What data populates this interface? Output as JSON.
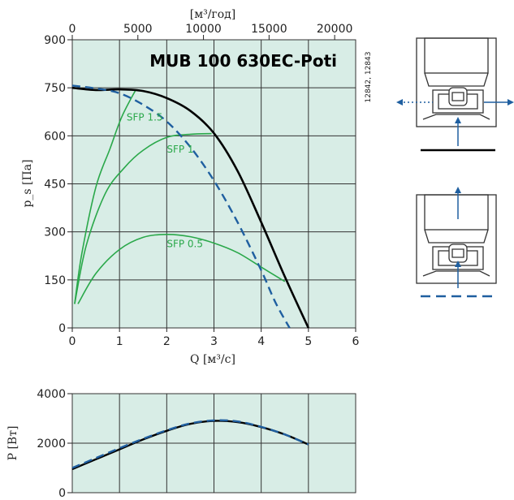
{
  "chart_data": [
    {
      "type": "line",
      "title": "MUB 100 630EC-Poti",
      "side_code": "12842, 12843",
      "xlabel": "Q [м³/с]",
      "x2label": "[м³/год]",
      "ylabel": "p_s [Па]",
      "xlim": [
        0,
        6
      ],
      "ylim": [
        0,
        900
      ],
      "x2lim": [
        0,
        21600
      ],
      "xticks": [
        "0",
        "1",
        "2",
        "3",
        "4",
        "5",
        "6"
      ],
      "yticks": [
        "0",
        "150",
        "300",
        "450",
        "600",
        "750",
        "900"
      ],
      "x2ticks": [
        "0",
        "5000",
        "10000",
        "15000",
        "20000"
      ],
      "grid": true,
      "series": [
        {
          "style": "solid-black",
          "x": [
            0,
            0.5,
            1.0,
            1.5,
            2.0,
            2.5,
            3.0,
            3.5,
            4.0,
            4.5,
            5.0
          ],
          "y": [
            750,
            743,
            745,
            740,
            718,
            678,
            608,
            490,
            330,
            160,
            0
          ]
        },
        {
          "style": "dashed-blue",
          "x": [
            0,
            0.5,
            1.0,
            1.5,
            2.0,
            2.5,
            3.0,
            3.5,
            4.0,
            4.3,
            4.6
          ],
          "y": [
            757,
            748,
            733,
            697,
            645,
            565,
            460,
            330,
            180,
            80,
            0
          ]
        }
      ],
      "sfp_curves": [
        {
          "label": "SFP 1.5",
          "x": [
            0.05,
            0.2,
            0.5,
            0.8,
            1.05,
            1.35
          ],
          "y": [
            75,
            230,
            440,
            560,
            660,
            745
          ]
        },
        {
          "label": "SFP 1",
          "x": [
            0.05,
            0.3,
            0.7,
            1.1,
            1.5,
            2.0,
            2.5,
            2.95
          ],
          "y": [
            75,
            260,
            420,
            500,
            555,
            595,
            605,
            607
          ]
        },
        {
          "label": "SFP 0.5",
          "x": [
            0.12,
            0.5,
            1.0,
            1.5,
            2.0,
            2.5,
            3.0,
            3.5,
            4.0,
            4.5
          ],
          "y": [
            75,
            170,
            245,
            283,
            292,
            285,
            265,
            235,
            190,
            145
          ]
        }
      ],
      "sfp_label_positions": [
        {
          "label": "SFP 1.5",
          "x": 1.15,
          "y": 648
        },
        {
          "label": "SFP 1",
          "x": 2.0,
          "y": 548
        },
        {
          "label": "SFP 0.5",
          "x": 2.0,
          "y": 252
        }
      ]
    },
    {
      "type": "line",
      "ylabel": "P [Вт]",
      "xlim": [
        0,
        6
      ],
      "ylim": [
        0,
        4000
      ],
      "yticks": [
        "0",
        "2000",
        "4000"
      ],
      "grid": true,
      "series": [
        {
          "style": "solid-black",
          "x": [
            0,
            0.5,
            1.0,
            1.5,
            2.0,
            2.5,
            3.0,
            3.5,
            4.0,
            4.5,
            5.0
          ],
          "y": [
            950,
            1350,
            1750,
            2150,
            2500,
            2780,
            2900,
            2850,
            2650,
            2350,
            1950
          ]
        },
        {
          "style": "dashed-blue",
          "x": [
            0,
            0.5,
            1.0,
            1.5,
            2.0,
            2.5,
            3.0,
            3.5,
            4.0,
            4.5,
            5.0
          ],
          "y": [
            1000,
            1400,
            1800,
            2180,
            2520,
            2800,
            2920,
            2880,
            2660,
            2350,
            1950
          ]
        }
      ]
    }
  ],
  "colors": {
    "plot_bg": "#d8ede6",
    "grid": "#333333",
    "solid": "#000000",
    "dashed": "#1f5fa0",
    "sfp": "#2aa84a",
    "arrow": "#1f5fa0"
  }
}
